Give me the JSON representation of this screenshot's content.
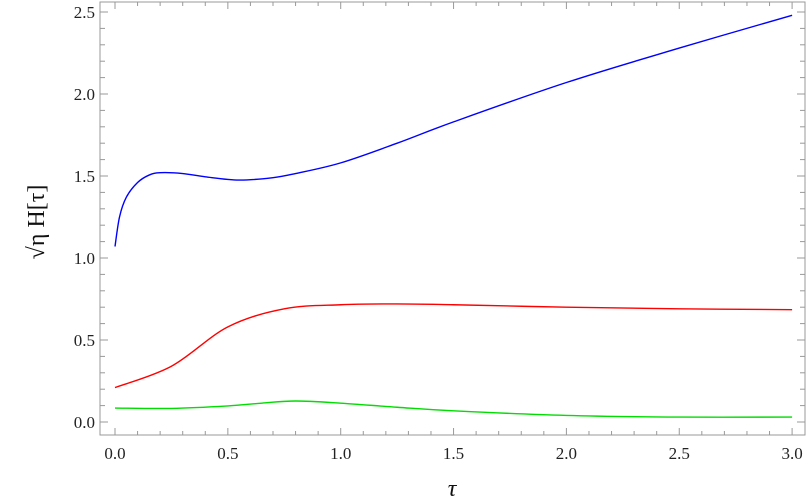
{
  "chart_data": {
    "type": "line",
    "title": "",
    "xlabel": "τ",
    "ylabel": "√η H[τ]",
    "ylabel_parts": {
      "radicand": "η",
      "rest": "H[τ]"
    },
    "xlim": [
      -0.1,
      3.03
    ],
    "ylim": [
      -0.08,
      2.57
    ],
    "xticks": [
      "0.0",
      "0.5",
      "1.0",
      "1.5",
      "2.0",
      "2.5",
      "3.0"
    ],
    "yticks": [
      "0.0",
      "0.5",
      "1.0",
      "1.5",
      "2.0",
      "2.5"
    ],
    "grid": false,
    "legend": "none",
    "series": [
      {
        "color": "#0000ff",
        "x": [
          0,
          0.02,
          0.05,
          0.1,
          0.15,
          0.2,
          0.3,
          0.4,
          0.55,
          0.7,
          0.8,
          1.0,
          1.25,
          1.5,
          2.0,
          2.5,
          3.0
        ],
        "y": [
          1.07,
          1.25,
          1.37,
          1.46,
          1.505,
          1.52,
          1.515,
          1.495,
          1.475,
          1.49,
          1.515,
          1.58,
          1.7,
          1.83,
          2.07,
          2.28,
          2.48
        ]
      },
      {
        "color": "#ff0000",
        "x": [
          0,
          0.25,
          0.5,
          0.75,
          1.0,
          1.25,
          1.5,
          2.0,
          2.5,
          3.0
        ],
        "y": [
          0.21,
          0.34,
          0.58,
          0.69,
          0.715,
          0.72,
          0.715,
          0.7,
          0.69,
          0.685
        ]
      },
      {
        "color": "#00dd00",
        "x": [
          0,
          0.25,
          0.5,
          0.65,
          0.8,
          1.0,
          1.25,
          1.5,
          2.0,
          2.5,
          3.0
        ],
        "y": [
          0.085,
          0.083,
          0.098,
          0.115,
          0.128,
          0.115,
          0.09,
          0.068,
          0.04,
          0.03,
          0.03
        ]
      }
    ]
  }
}
